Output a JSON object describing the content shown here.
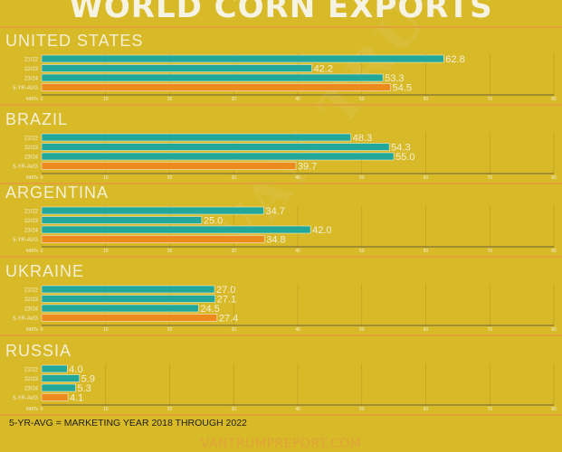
{
  "title": "WORLD CORN EXPORTS",
  "footnote": "5-YR-AVG = MARKETING YEAR 2018 THROUGH 2022",
  "website": "VANTRUMPREPORT.COM",
  "watermark": "VAN TRUMP",
  "colors": {
    "background": "#d8b927",
    "year_bar": "#21a89a",
    "avg_bar": "#ec8a1e",
    "separator": "#e2a23a",
    "axis": "#444444",
    "grid": "#c2a120",
    "text_dark": "#1e1e1e",
    "text_light": "#f4f0d6"
  },
  "chart_data": {
    "type": "bar",
    "orientation": "horizontal",
    "categories": [
      "21/22",
      "22/23",
      "23/24",
      "5-YR-AVG"
    ],
    "axis_unit_label": "MMTs",
    "xlim": [
      0,
      80
    ],
    "xticks": [
      0,
      10,
      20,
      30,
      40,
      50,
      60,
      70,
      80
    ],
    "panels": [
      {
        "country": "UNITED STATES",
        "values": [
          62.8,
          42.2,
          53.3,
          54.5
        ]
      },
      {
        "country": "BRAZIL",
        "values": [
          48.3,
          54.3,
          55.0,
          39.7
        ]
      },
      {
        "country": "ARGENTINA",
        "values": [
          34.7,
          25.0,
          42.0,
          34.8
        ]
      },
      {
        "country": "UKRAINE",
        "values": [
          27.0,
          27.1,
          24.5,
          27.4
        ]
      },
      {
        "country": "RUSSIA",
        "values": [
          4.0,
          5.9,
          5.3,
          4.1
        ]
      }
    ]
  }
}
